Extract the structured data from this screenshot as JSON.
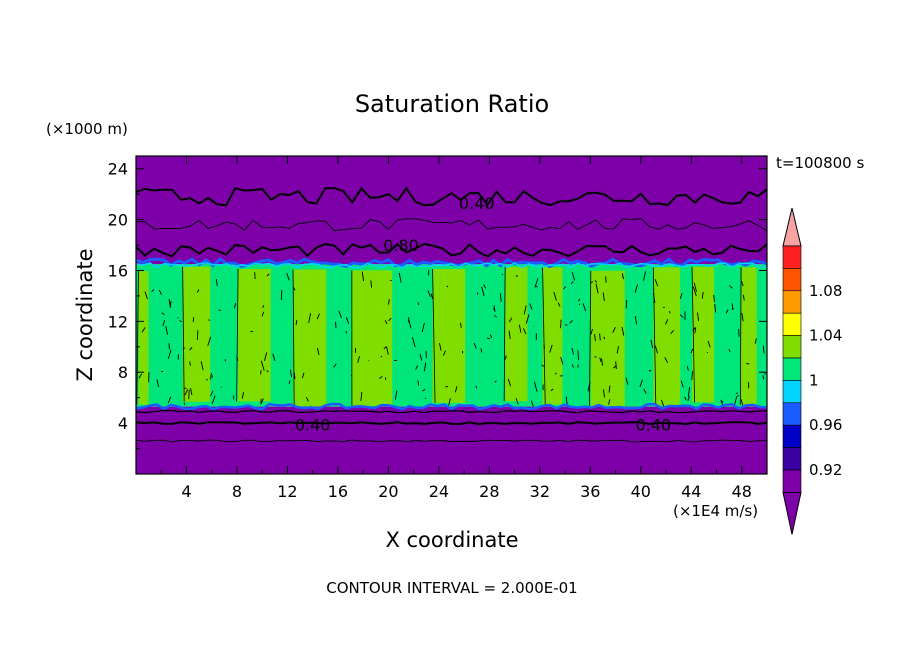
{
  "chart_data": {
    "type": "heatmap",
    "title": "Saturation Ratio",
    "y_unit_label": "(×1000 m)",
    "x_unit_label": "(×1E4 m/s)",
    "xlabel": "X coordinate",
    "ylabel": "Z coordinate",
    "time_label": "t=100800 s",
    "footer": "CONTOUR INTERVAL = 2.000E-01",
    "xlim": [
      0,
      50
    ],
    "ylim": [
      0,
      25
    ],
    "x_ticks": [
      "4",
      "8",
      "12",
      "16",
      "20",
      "24",
      "28",
      "32",
      "36",
      "40",
      "44",
      "48"
    ],
    "y_ticks": [
      "4",
      "8",
      "12",
      "16",
      "20",
      "24"
    ],
    "contour_labels": [
      {
        "text": "0.40",
        "x": 27.0,
        "z": 21.3
      },
      {
        "text": "0.80",
        "x": 21.0,
        "z": 18.0
      },
      {
        "text": "0.40",
        "x": 14.0,
        "z": 3.9
      },
      {
        "text": "0.40",
        "x": 41.0,
        "z": 3.9
      }
    ],
    "bands": [
      {
        "z_from": 0,
        "z_to": 5.3,
        "level": "<0.90"
      },
      {
        "z_from": 5.3,
        "z_to": 16.5,
        "level": "0.98-1.02"
      },
      {
        "z_from": 16.5,
        "z_to": 25,
        "level": "<0.90"
      }
    ],
    "colorbar": {
      "labels": [
        "1.08",
        "1.04",
        "1",
        "0.96",
        "0.92"
      ],
      "colors": [
        "#7d00a8",
        "#3a00a3",
        "#0000c8",
        "#1a5cff",
        "#00d4ff",
        "#00e67a",
        "#7fdd00",
        "#ffff00",
        "#ff9a00",
        "#ff5500",
        "#ff2020"
      ],
      "over_color": "#f5a3a3",
      "under_color": "#7d00a8"
    }
  }
}
